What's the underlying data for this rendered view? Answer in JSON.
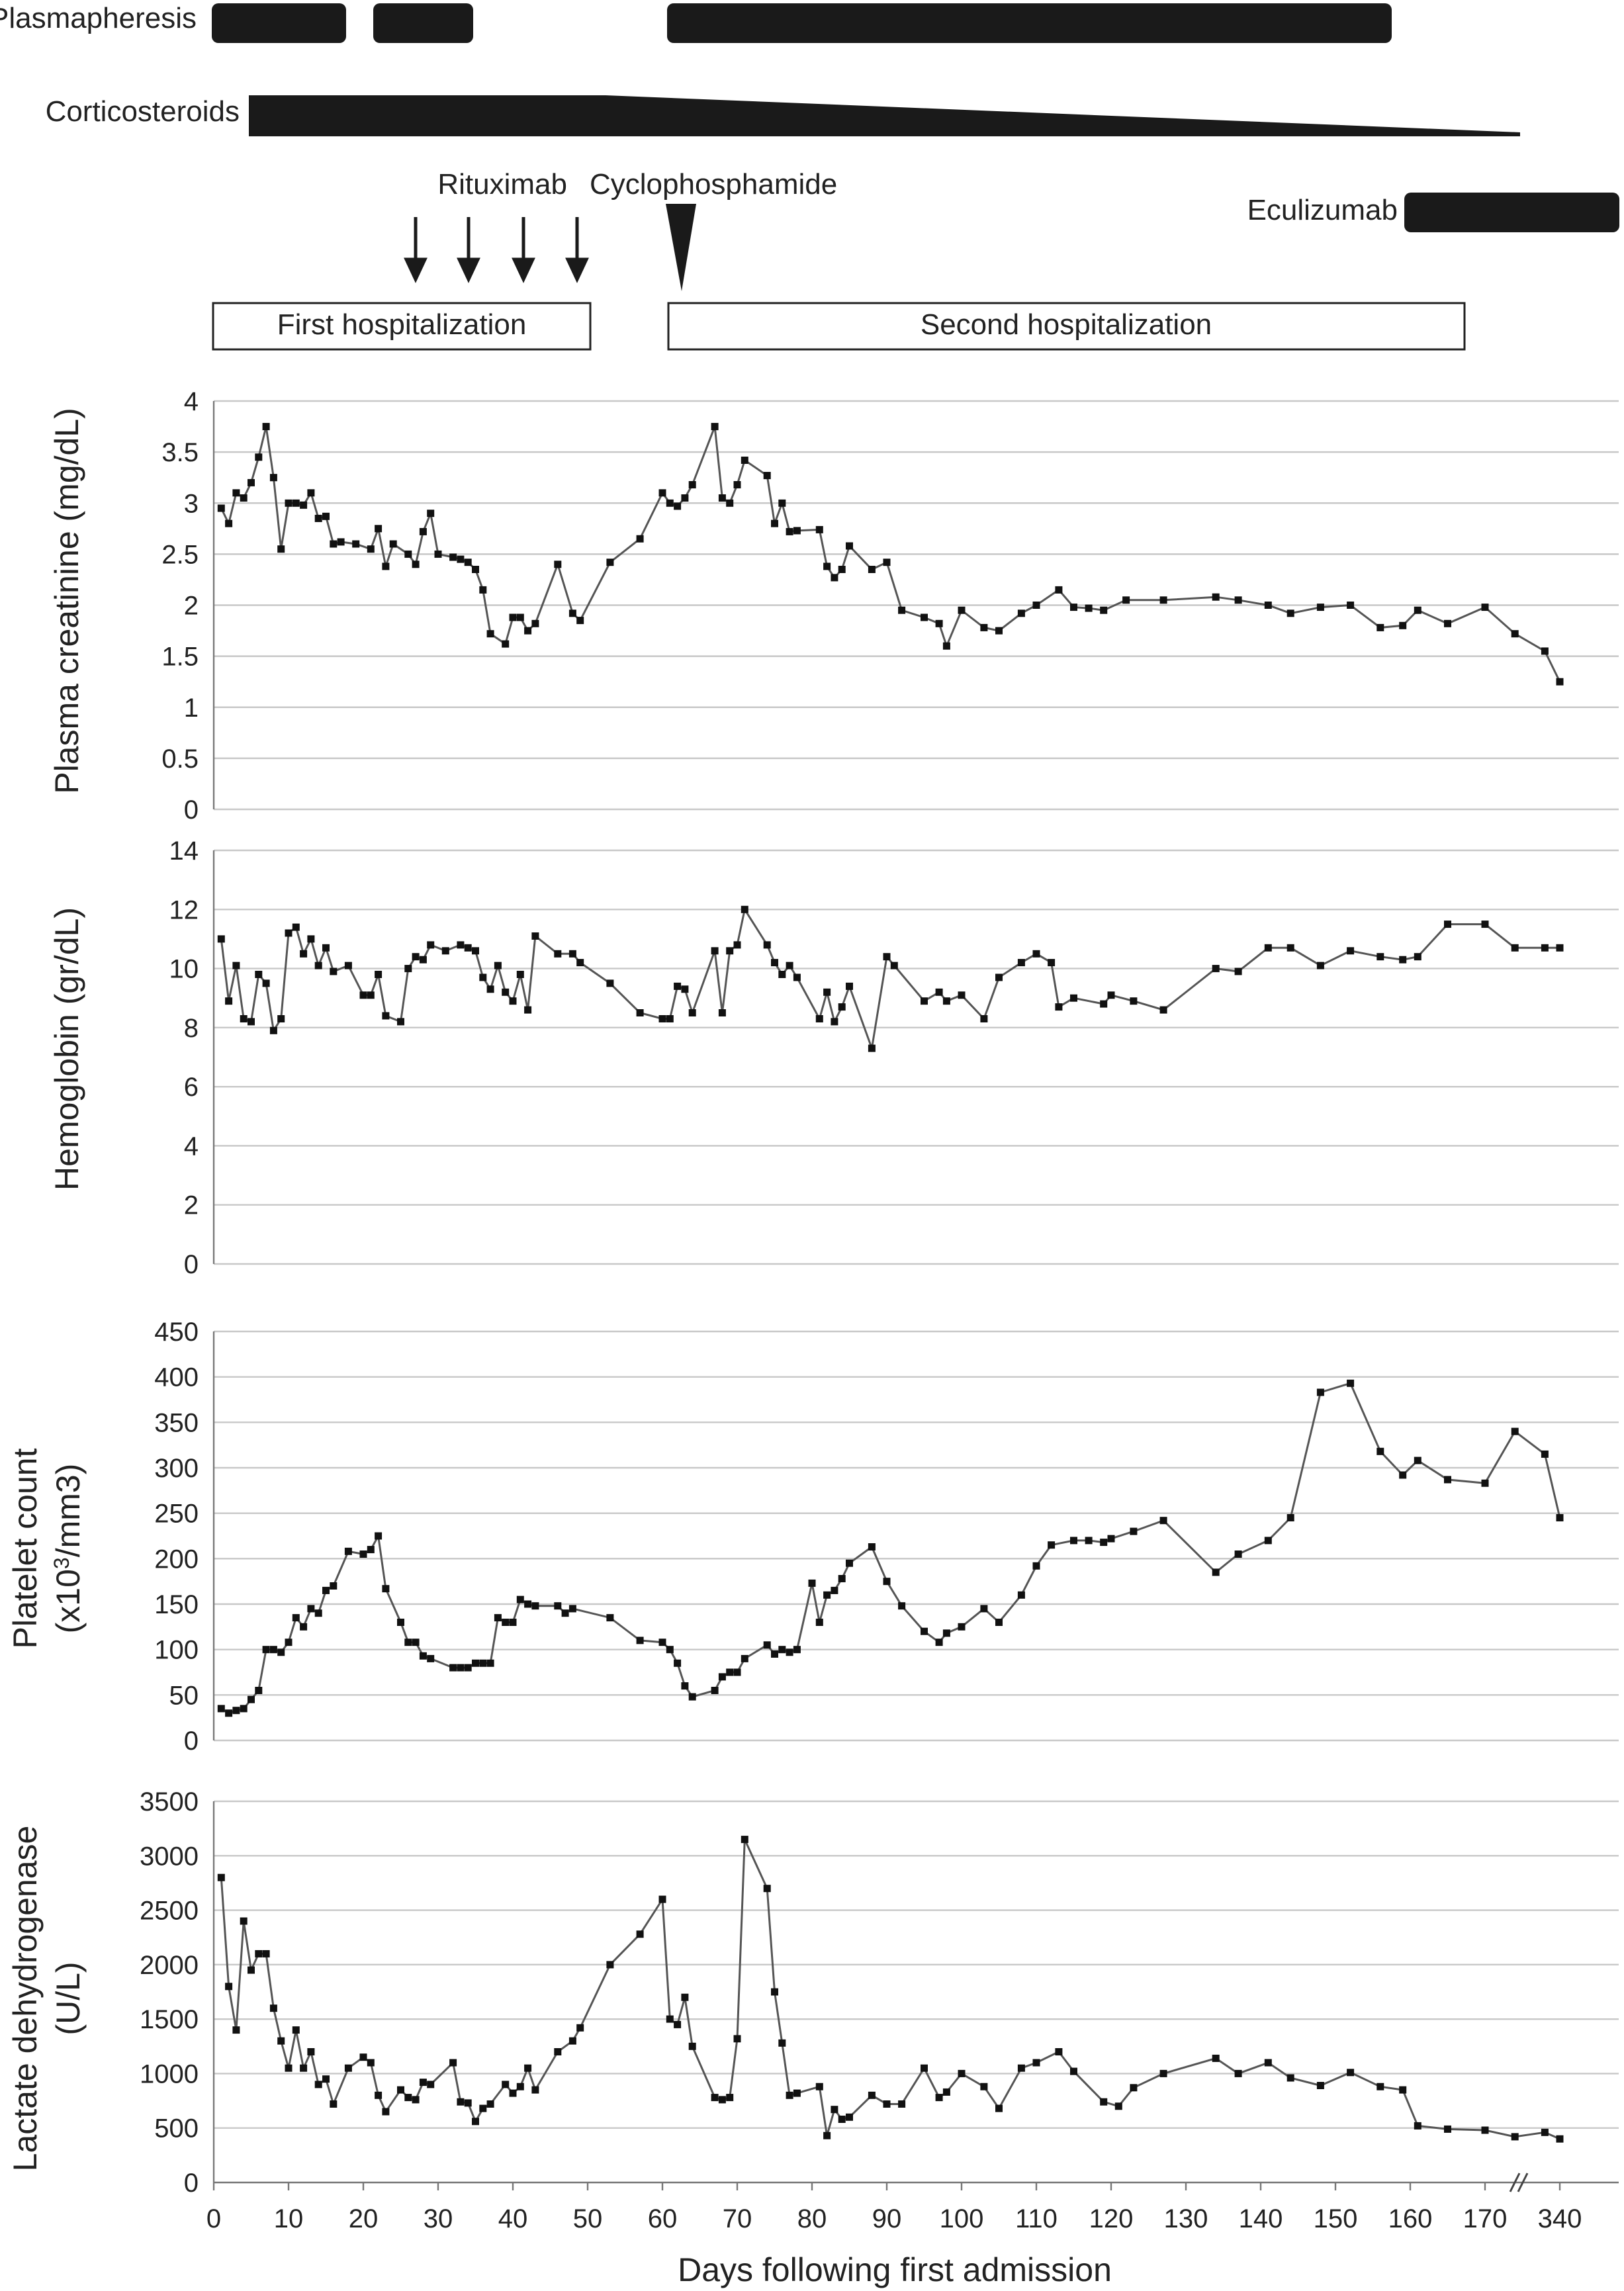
{
  "treatments": {
    "plasmapheresis_label": "Plasmapheresis",
    "corticosteroids_label": "Corticosteroids",
    "rituximab_label": "Rituximab",
    "cyclophosphamide_label": "Cyclophosphamide",
    "eculizumab_label": "Eculizumab",
    "first_hosp_label": "First hospitalization",
    "second_hosp_label": "Second hospitalization"
  },
  "chart_data": [
    {
      "type": "line",
      "ylabel": "Plasma creatinine (mg/dL)",
      "ylim": [
        0,
        4
      ],
      "yticks": [
        "0",
        "0.5",
        "1",
        "1.5",
        "2",
        "2.5",
        "3",
        "3.5",
        "4"
      ],
      "grid": true,
      "x": [
        1,
        2,
        3,
        4,
        5,
        6,
        7,
        8,
        9,
        10,
        11,
        12,
        13,
        14,
        15,
        16,
        17,
        19,
        21,
        22,
        23,
        24,
        26,
        27,
        28,
        29,
        30,
        32,
        33,
        34,
        35,
        36,
        37,
        39,
        40,
        41,
        42,
        43,
        46,
        48,
        49,
        53,
        57,
        60,
        61,
        62,
        63,
        64,
        67,
        68,
        69,
        70,
        71,
        74,
        75,
        76,
        77,
        78,
        81,
        82,
        83,
        84,
        85,
        88,
        90,
        92,
        95,
        97,
        98,
        100,
        103,
        105,
        108,
        110,
        113,
        115,
        117,
        119,
        122,
        127,
        134,
        137,
        141,
        144,
        148,
        152,
        156,
        159,
        161,
        165,
        170,
        174,
        178,
        180
      ],
      "y": [
        2.95,
        2.8,
        3.1,
        3.05,
        3.2,
        3.45,
        3.75,
        3.25,
        2.55,
        3.0,
        3.0,
        2.98,
        3.1,
        2.85,
        2.87,
        2.6,
        2.62,
        2.6,
        2.55,
        2.75,
        2.38,
        2.6,
        2.5,
        2.4,
        2.72,
        2.9,
        2.5,
        2.47,
        2.45,
        2.42,
        2.35,
        2.15,
        1.72,
        1.62,
        1.88,
        1.88,
        1.75,
        1.82,
        2.4,
        1.92,
        1.85,
        2.42,
        2.65,
        3.1,
        3.0,
        2.97,
        3.05,
        3.18,
        3.75,
        3.05,
        3.0,
        3.18,
        3.42,
        3.27,
        2.8,
        3.0,
        2.72,
        2.73,
        2.74,
        2.38,
        2.27,
        2.35,
        2.58,
        2.35,
        2.42,
        1.95,
        1.88,
        1.82,
        1.6,
        1.95,
        1.78,
        1.75,
        1.92,
        2.0,
        2.15,
        1.98,
        1.97,
        1.95,
        2.05,
        2.05,
        2.08,
        2.05,
        2.0,
        1.92,
        1.98,
        2.0,
        1.78,
        1.8,
        1.95,
        1.82,
        1.98,
        1.72,
        1.55,
        1.25
      ]
    },
    {
      "type": "line",
      "ylabel": "Hemoglobin (gr/dL)",
      "ylim": [
        0,
        14
      ],
      "yticks": [
        "0",
        "2",
        "4",
        "6",
        "8",
        "10",
        "12",
        "14"
      ],
      "grid": true,
      "x": [
        1,
        2,
        3,
        4,
        5,
        6,
        7,
        8,
        9,
        10,
        11,
        12,
        13,
        14,
        15,
        16,
        18,
        20,
        21,
        22,
        23,
        25,
        26,
        27,
        28,
        29,
        31,
        33,
        34,
        35,
        36,
        37,
        38,
        39,
        40,
        41,
        42,
        43,
        46,
        48,
        49,
        53,
        57,
        60,
        61,
        62,
        63,
        64,
        67,
        68,
        69,
        70,
        71,
        74,
        75,
        76,
        77,
        78,
        81,
        82,
        83,
        84,
        85,
        88,
        90,
        91,
        95,
        97,
        98,
        100,
        103,
        105,
        108,
        110,
        112,
        113,
        115,
        119,
        120,
        123,
        127,
        134,
        137,
        141,
        144,
        148,
        152,
        156,
        159,
        161,
        165,
        170,
        174,
        178,
        180
      ],
      "y": [
        11.0,
        8.9,
        10.1,
        8.3,
        8.2,
        9.8,
        9.5,
        7.9,
        8.3,
        11.2,
        11.4,
        10.5,
        11.0,
        10.1,
        10.7,
        9.9,
        10.1,
        9.1,
        9.1,
        9.8,
        8.4,
        8.2,
        10.0,
        10.4,
        10.3,
        10.8,
        10.6,
        10.8,
        10.7,
        10.6,
        9.7,
        9.3,
        10.1,
        9.2,
        8.9,
        9.8,
        8.6,
        11.1,
        10.5,
        10.5,
        10.2,
        9.5,
        8.5,
        8.3,
        8.3,
        9.4,
        9.3,
        8.5,
        10.6,
        8.5,
        10.6,
        10.8,
        12.0,
        10.8,
        10.2,
        9.8,
        10.1,
        9.7,
        8.3,
        9.2,
        8.2,
        8.7,
        9.4,
        7.3,
        10.4,
        10.1,
        8.9,
        9.2,
        8.9,
        9.1,
        8.3,
        9.7,
        10.2,
        10.5,
        10.2,
        8.7,
        9.0,
        8.8,
        9.1,
        8.9,
        8.6,
        10.0,
        9.9,
        10.7,
        10.7,
        10.1,
        10.6,
        10.4,
        10.3,
        10.4,
        11.5,
        11.5,
        10.7,
        10.7,
        10.7
      ],
      "y_note_hidden": ""
    },
    {
      "type": "line",
      "ylabel": "Platelet count (x10³/mm3)",
      "ylim": [
        0,
        450
      ],
      "yticks": [
        "0",
        "50",
        "100",
        "150",
        "200",
        "250",
        "300",
        "350",
        "400",
        "450"
      ],
      "grid": true,
      "x": [
        1,
        2,
        3,
        4,
        5,
        6,
        7,
        8,
        9,
        10,
        11,
        12,
        13,
        14,
        15,
        16,
        18,
        20,
        21,
        22,
        23,
        25,
        26,
        27,
        28,
        29,
        32,
        33,
        34,
        35,
        36,
        37,
        38,
        39,
        40,
        41,
        42,
        43,
        46,
        47,
        48,
        53,
        57,
        60,
        61,
        62,
        63,
        64,
        67,
        68,
        69,
        70,
        71,
        74,
        75,
        76,
        77,
        78,
        80,
        81,
        82,
        83,
        84,
        85,
        88,
        90,
        92,
        95,
        97,
        98,
        100,
        103,
        105,
        108,
        110,
        112,
        115,
        117,
        119,
        120,
        123,
        127,
        134,
        137,
        141,
        144,
        148,
        152,
        156,
        159,
        161,
        165,
        170,
        174,
        178,
        180
      ],
      "y": [
        35,
        30,
        33,
        35,
        45,
        55,
        100,
        100,
        97,
        108,
        135,
        125,
        145,
        140,
        165,
        170,
        208,
        205,
        210,
        225,
        167,
        130,
        108,
        108,
        93,
        90,
        80,
        80,
        80,
        85,
        85,
        85,
        135,
        130,
        130,
        155,
        150,
        148,
        148,
        140,
        145,
        135,
        110,
        108,
        100,
        85,
        60,
        48,
        55,
        70,
        75,
        75,
        90,
        105,
        95,
        100,
        97,
        100,
        173,
        130,
        160,
        165,
        178,
        195,
        213,
        175,
        148,
        120,
        108,
        118,
        125,
        145,
        130,
        160,
        192,
        215,
        220,
        220,
        218,
        222,
        230,
        242,
        185,
        205,
        220,
        245,
        383,
        393,
        318,
        292,
        308,
        287,
        283,
        340,
        315,
        245
      ]
    },
    {
      "type": "line",
      "ylabel": "Lactate dehydrogenase (U/L)",
      "xlabel": "Days following first admission",
      "ylim": [
        0,
        3500
      ],
      "yticks": [
        "0",
        "500",
        "1000",
        "1500",
        "2000",
        "2500",
        "3000",
        "3500"
      ],
      "xticks": [
        "0",
        "10",
        "20",
        "30",
        "40",
        "50",
        "60",
        "70",
        "80",
        "90",
        "100",
        "110",
        "120",
        "130",
        "140",
        "150",
        "160",
        "170",
        "340"
      ],
      "grid": true,
      "x": [
        1,
        2,
        3,
        4,
        5,
        6,
        7,
        8,
        9,
        10,
        11,
        12,
        13,
        14,
        15,
        16,
        18,
        20,
        21,
        22,
        23,
        25,
        26,
        27,
        28,
        29,
        32,
        33,
        34,
        35,
        36,
        37,
        39,
        40,
        41,
        42,
        43,
        46,
        48,
        49,
        53,
        57,
        60,
        61,
        62,
        63,
        64,
        67,
        68,
        69,
        70,
        71,
        74,
        75,
        76,
        77,
        78,
        81,
        82,
        83,
        84,
        85,
        88,
        90,
        92,
        95,
        97,
        98,
        100,
        103,
        105,
        108,
        110,
        113,
        115,
        119,
        121,
        123,
        127,
        134,
        137,
        141,
        144,
        148,
        152,
        156,
        159,
        161,
        165,
        170,
        174,
        178,
        180
      ],
      "y": [
        2800,
        1800,
        1400,
        2400,
        1950,
        2100,
        2100,
        1600,
        1300,
        1050,
        1400,
        1050,
        1200,
        900,
        950,
        720,
        1050,
        1150,
        1100,
        800,
        650,
        850,
        780,
        760,
        920,
        900,
        1100,
        740,
        730,
        560,
        680,
        720,
        900,
        820,
        880,
        1050,
        850,
        1200,
        1300,
        1420,
        2000,
        2280,
        2600,
        1500,
        1450,
        1700,
        1250,
        780,
        760,
        780,
        1320,
        3150,
        2700,
        1750,
        1280,
        800,
        820,
        880,
        430,
        670,
        580,
        600,
        800,
        720,
        720,
        1050,
        780,
        830,
        1000,
        880,
        680,
        1050,
        1100,
        1200,
        1020,
        740,
        700,
        870,
        1000,
        1140,
        1000,
        1100,
        960,
        890,
        1010,
        880,
        850,
        520,
        490,
        480,
        420,
        460,
        400
      ]
    }
  ]
}
